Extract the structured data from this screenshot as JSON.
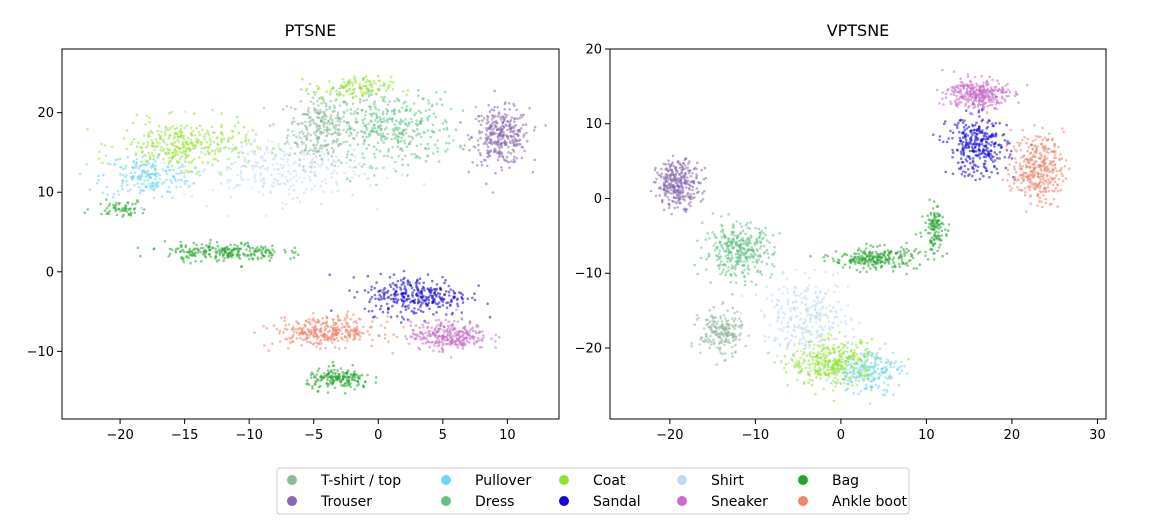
{
  "chart_data": [
    {
      "type": "scatter",
      "title": "PTSNE",
      "xlabel": "",
      "ylabel": "",
      "xlim": [
        -24.5,
        14
      ],
      "ylim": [
        -18.5,
        28
      ],
      "xticks": [
        -20,
        -15,
        -10,
        -5,
        0,
        5,
        10
      ],
      "yticks": [
        -10,
        0,
        10,
        20
      ],
      "grid": false,
      "clusters": [
        {
          "series": "T-shirt / top",
          "center": [
            -4.5,
            18
          ],
          "spread": [
            2.5,
            4.5
          ],
          "count": 260
        },
        {
          "series": "Trouser",
          "center": [
            9.5,
            17
          ],
          "spread": [
            2.2,
            3.5
          ],
          "count": 320
        },
        {
          "series": "Pullover",
          "center": [
            -18,
            12
          ],
          "spread": [
            3.5,
            2.8
          ],
          "count": 200
        },
        {
          "series": "Dress",
          "center": [
            1,
            18
          ],
          "spread": [
            5,
            4.5
          ],
          "count": 380
        },
        {
          "series": "Coat",
          "center": [
            -15,
            16
          ],
          "spread": [
            5,
            3
          ],
          "count": 320
        },
        {
          "series": "Coat",
          "center": [
            -2,
            23
          ],
          "spread": [
            3,
            1.5
          ],
          "count": 120
        },
        {
          "series": "Sandal",
          "center": [
            3,
            -3
          ],
          "spread": [
            4,
            2.5
          ],
          "count": 320
        },
        {
          "series": "Shirt",
          "center": [
            -8,
            13
          ],
          "spread": [
            7,
            4
          ],
          "count": 300
        },
        {
          "series": "Sneaker",
          "center": [
            5.5,
            -8
          ],
          "spread": [
            3,
            1.8
          ],
          "count": 300
        },
        {
          "series": "Bag",
          "center": [
            -12,
            2.5
          ],
          "spread": [
            4.5,
            1.2
          ],
          "count": 240
        },
        {
          "series": "Bag",
          "center": [
            -3,
            -13.5
          ],
          "spread": [
            2.5,
            1.3
          ],
          "count": 180
        },
        {
          "series": "Bag",
          "center": [
            -20,
            8
          ],
          "spread": [
            2,
            1
          ],
          "count": 60
        },
        {
          "series": "Ankle boot",
          "center": [
            -4,
            -7.5
          ],
          "spread": [
            4,
            1.8
          ],
          "count": 320
        }
      ]
    },
    {
      "type": "scatter",
      "title": "VPTSNE",
      "xlabel": "",
      "ylabel": "",
      "xlim": [
        -27,
        31
      ],
      "ylim": [
        -29.5,
        20
      ],
      "xticks": [
        -20,
        -10,
        0,
        10,
        20,
        30
      ],
      "yticks": [
        -20,
        -10,
        0,
        10,
        20
      ],
      "grid": false,
      "clusters": [
        {
          "series": "T-shirt / top",
          "center": [
            -14,
            -18
          ],
          "spread": [
            2.5,
            3
          ],
          "count": 200
        },
        {
          "series": "Trouser",
          "center": [
            -19,
            2
          ],
          "spread": [
            2.5,
            3
          ],
          "count": 320
        },
        {
          "series": "Pullover",
          "center": [
            3,
            -23
          ],
          "spread": [
            4,
            3
          ],
          "count": 220
        },
        {
          "series": "Dress",
          "center": [
            -12,
            -7
          ],
          "spread": [
            4,
            3.5
          ],
          "count": 340
        },
        {
          "series": "Coat",
          "center": [
            -1,
            -22
          ],
          "spread": [
            5,
            3
          ],
          "count": 340
        },
        {
          "series": "Sandal",
          "center": [
            16,
            7
          ],
          "spread": [
            3.5,
            4
          ],
          "count": 320
        },
        {
          "series": "Shirt",
          "center": [
            -4,
            -16
          ],
          "spread": [
            5,
            5
          ],
          "count": 300
        },
        {
          "series": "Sneaker",
          "center": [
            16,
            14
          ],
          "spread": [
            3.5,
            2
          ],
          "count": 320
        },
        {
          "series": "Bag",
          "center": [
            4,
            -8
          ],
          "spread": [
            5,
            1.5
          ],
          "count": 240
        },
        {
          "series": "Bag",
          "center": [
            11,
            -4
          ],
          "spread": [
            1.2,
            3
          ],
          "count": 120
        },
        {
          "series": "Ankle boot",
          "center": [
            23,
            4
          ],
          "spread": [
            3,
            4.5
          ],
          "count": 340
        }
      ]
    }
  ],
  "legend": {
    "placement": "bottom-center",
    "items": [
      {
        "label": "T-shirt / top",
        "color": "#8fb79a"
      },
      {
        "label": "Trouser",
        "color": "#8868b0"
      },
      {
        "label": "Pullover",
        "color": "#6ed6ef"
      },
      {
        "label": "Dress",
        "color": "#5ec383"
      },
      {
        "label": "Coat",
        "color": "#8ee52a"
      },
      {
        "label": "Sandal",
        "color": "#1505d6"
      },
      {
        "label": "Shirt",
        "color": "#c3dbf0"
      },
      {
        "label": "Sneaker",
        "color": "#c76fc9"
      },
      {
        "label": "Bag",
        "color": "#22a52c"
      },
      {
        "label": "Ankle boot",
        "color": "#ef8466"
      }
    ]
  }
}
